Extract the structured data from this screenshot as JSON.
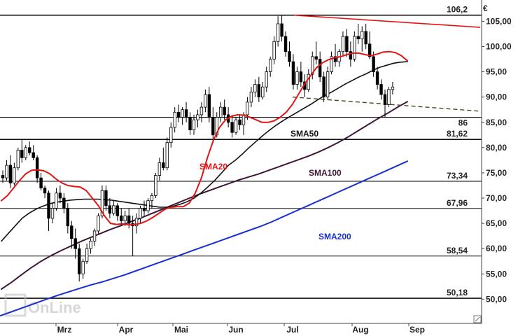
{
  "chart_data": {
    "type": "candlestick",
    "currency_label": "€",
    "y_range": [
      45,
      109
    ],
    "y_ticks": [
      {
        "value": 50,
        "label": "50,00"
      },
      {
        "value": 55,
        "label": "55,00"
      },
      {
        "value": 60,
        "label": "60,00"
      },
      {
        "value": 65,
        "label": "65,00"
      },
      {
        "value": 70,
        "label": "70,00"
      },
      {
        "value": 75,
        "label": "75,00"
      },
      {
        "value": 80,
        "label": "80,00"
      },
      {
        "value": 85,
        "label": "85,00"
      },
      {
        "value": 90,
        "label": "90,00"
      },
      {
        "value": 95,
        "label": "95,00"
      },
      {
        "value": 100,
        "label": "100,00"
      },
      {
        "value": 105,
        "label": "105,00"
      }
    ],
    "x_ticks": [
      "Mrz",
      "Apr",
      "Mai",
      "Jun",
      "Jul",
      "Aug",
      "Sep"
    ],
    "levels": [
      {
        "value": 106.2,
        "label": "106,2"
      },
      {
        "value": 86,
        "label": "86"
      },
      {
        "value": 81.62,
        "label": "81,62"
      },
      {
        "value": 73.34,
        "label": "73,34"
      },
      {
        "value": 67.96,
        "label": "67,96"
      },
      {
        "value": 58.54,
        "label": "58,54"
      },
      {
        "value": 50.18,
        "label": "50,18"
      }
    ],
    "sma_labels": {
      "sma20": "SMA20",
      "sma50": "SMA50",
      "sma100": "SMA100",
      "sma200": "SMA200"
    },
    "colors": {
      "candle": "#000000",
      "sma20": "#e41414",
      "sma50": "#111111",
      "sma100": "#3d1838",
      "sma200": "#1a2fd0",
      "resistance_trend": "#e41414",
      "support_trend": "#4a4a22",
      "level_line": "#111111",
      "axis": "#444444"
    },
    "watermark": "OnLine",
    "resistance_trendline": {
      "start": 106.2,
      "end": 103.8
    },
    "support_trendline": {
      "start": 90.0,
      "end": 87.2
    },
    "sma20": [
      69.5,
      70.5,
      72,
      73.5,
      74.8,
      75.5,
      75.6,
      75.4,
      74.8,
      73.8,
      73,
      72.5,
      72.3,
      72.2,
      71.5,
      70,
      68.5,
      66.5,
      65,
      64.8,
      64.9,
      64.7,
      64.8,
      65,
      65.5,
      66.2,
      67,
      67.8,
      68.2,
      68.3,
      68.3,
      69,
      71,
      74,
      78,
      81.5,
      84,
      85.5,
      86.2,
      86.5,
      86.4,
      86,
      85.5,
      85,
      85,
      85.3,
      86,
      87,
      88.5,
      90.5,
      92.5,
      94.2,
      95.8,
      96.8,
      97.4,
      97.8,
      98,
      98.4,
      98.7,
      98.7,
      98.4,
      98.2,
      98.5,
      98.9,
      99,
      98.8,
      98.2,
      97.2
    ],
    "sma50": [
      61.5,
      63,
      64.5,
      66,
      67,
      67.8,
      68.4,
      68.9,
      69.2,
      69.4,
      69.6,
      69.7,
      69.8,
      69.8,
      69.8,
      69.7,
      69.6,
      69.4,
      69.2,
      69,
      68.8,
      68.6,
      68.4,
      68.2,
      68.2,
      68.4,
      68.8,
      69.3,
      70,
      71,
      72.2,
      73.5,
      75,
      76.5,
      77.5,
      78.7,
      80,
      81.2,
      82.4,
      83.5,
      84.5,
      85.4,
      86.2,
      87,
      87.8,
      88.6,
      89.5,
      90.3,
      91,
      91.8,
      92.6,
      93.3,
      94,
      94.6,
      95.3,
      95.9,
      96.3,
      96.7,
      96.9,
      97
    ],
    "sma100": [
      52,
      53.3,
      54.8,
      56.2,
      57.5,
      58.6,
      59.6,
      60.5,
      61.4,
      62.2,
      63,
      63.8,
      64.5,
      65.3,
      66,
      66.8,
      67.6,
      68.4,
      69.2,
      70,
      70.8,
      71.5,
      72.2,
      72.9,
      73.6,
      74.2,
      74.8,
      75.5,
      76.2,
      76.9,
      77.6,
      78.3,
      79.1,
      80,
      81,
      82.1,
      83.3,
      84.5,
      85.7,
      86.8,
      88,
      89.1
    ],
    "sma200": [
      46.7,
      47.5,
      48.3,
      49.1,
      49.9,
      50.7,
      51.4,
      52.1,
      52.8,
      53.4,
      54.1,
      54.8,
      55.6,
      56.4,
      57.2,
      58,
      58.8,
      59.6,
      60.4,
      61.2,
      62,
      62.8,
      63.6,
      64.4,
      65.3,
      66.3,
      67.3,
      68.3,
      69.3,
      70.3,
      71.3,
      72.3,
      73.3,
      74.3,
      75.3,
      76.3,
      77.3
    ],
    "candles": [
      {
        "o": 74.5,
        "h": 75.5,
        "l": 73,
        "c": 74
      },
      {
        "o": 74,
        "h": 77.5,
        "l": 73.5,
        "c": 76.5
      },
      {
        "o": 76.5,
        "h": 78.5,
        "l": 72,
        "c": 73
      },
      {
        "o": 73,
        "h": 77,
        "l": 72.5,
        "c": 76
      },
      {
        "o": 76,
        "h": 80,
        "l": 75.5,
        "c": 79.5
      },
      {
        "o": 79.5,
        "h": 81.5,
        "l": 77,
        "c": 78
      },
      {
        "o": 78,
        "h": 80.5,
        "l": 77.5,
        "c": 80
      },
      {
        "o": 80,
        "h": 81.2,
        "l": 78.5,
        "c": 79
      },
      {
        "o": 79,
        "h": 80.5,
        "l": 77.5,
        "c": 78
      },
      {
        "o": 78,
        "h": 78.5,
        "l": 73,
        "c": 74
      },
      {
        "o": 74,
        "h": 75,
        "l": 71.5,
        "c": 72
      },
      {
        "o": 72,
        "h": 72.5,
        "l": 70,
        "c": 71
      },
      {
        "o": 71,
        "h": 71.5,
        "l": 63.5,
        "c": 66
      },
      {
        "o": 66,
        "h": 69,
        "l": 65,
        "c": 68
      },
      {
        "o": 68,
        "h": 72,
        "l": 67.5,
        "c": 71
      },
      {
        "o": 71,
        "h": 72.5,
        "l": 69,
        "c": 70
      },
      {
        "o": 70,
        "h": 71,
        "l": 67,
        "c": 68
      },
      {
        "o": 68,
        "h": 69,
        "l": 63,
        "c": 64.5
      },
      {
        "o": 64.5,
        "h": 65.5,
        "l": 60,
        "c": 62
      },
      {
        "o": 62,
        "h": 64,
        "l": 58,
        "c": 60
      },
      {
        "o": 60,
        "h": 61,
        "l": 53.5,
        "c": 55
      },
      {
        "o": 55,
        "h": 58,
        "l": 54,
        "c": 57.5
      },
      {
        "o": 57.5,
        "h": 61,
        "l": 57,
        "c": 60
      },
      {
        "o": 60,
        "h": 62,
        "l": 59,
        "c": 61.5
      },
      {
        "o": 61.5,
        "h": 64,
        "l": 60.5,
        "c": 63.5
      },
      {
        "o": 63.5,
        "h": 67,
        "l": 63,
        "c": 66.5
      },
      {
        "o": 66.5,
        "h": 72.5,
        "l": 66,
        "c": 71.5
      },
      {
        "o": 71.5,
        "h": 72.5,
        "l": 67.5,
        "c": 68.5
      },
      {
        "o": 68.5,
        "h": 70,
        "l": 66,
        "c": 67
      },
      {
        "o": 67,
        "h": 69.5,
        "l": 66.5,
        "c": 68.5
      },
      {
        "o": 68.5,
        "h": 69,
        "l": 65.5,
        "c": 66.5
      },
      {
        "o": 66.5,
        "h": 68,
        "l": 64.5,
        "c": 65.5
      },
      {
        "o": 65.5,
        "h": 67.5,
        "l": 64.5,
        "c": 66.5
      },
      {
        "o": 66.5,
        "h": 68,
        "l": 64,
        "c": 65
      },
      {
        "o": 65,
        "h": 66.5,
        "l": 58.5,
        "c": 64.5
      },
      {
        "o": 64.5,
        "h": 67,
        "l": 63,
        "c": 66
      },
      {
        "o": 66,
        "h": 68.5,
        "l": 65,
        "c": 68
      },
      {
        "o": 68,
        "h": 69.5,
        "l": 66.5,
        "c": 67.5
      },
      {
        "o": 67.5,
        "h": 70,
        "l": 67,
        "c": 69.5
      },
      {
        "o": 69.5,
        "h": 71,
        "l": 68,
        "c": 70.5
      },
      {
        "o": 70.5,
        "h": 75,
        "l": 70,
        "c": 74.5
      },
      {
        "o": 74.5,
        "h": 78,
        "l": 73.5,
        "c": 77
      },
      {
        "o": 77,
        "h": 80,
        "l": 75.5,
        "c": 76
      },
      {
        "o": 76,
        "h": 82,
        "l": 75.5,
        "c": 81
      },
      {
        "o": 81,
        "h": 85,
        "l": 80,
        "c": 84
      },
      {
        "o": 84,
        "h": 88,
        "l": 83,
        "c": 87
      },
      {
        "o": 87,
        "h": 88.5,
        "l": 85,
        "c": 86
      },
      {
        "o": 86,
        "h": 88,
        "l": 84.5,
        "c": 87.5
      },
      {
        "o": 87.5,
        "h": 89,
        "l": 85,
        "c": 86
      },
      {
        "o": 86,
        "h": 87,
        "l": 82.5,
        "c": 83.5
      },
      {
        "o": 83.5,
        "h": 86.5,
        "l": 82.5,
        "c": 85.5
      },
      {
        "o": 85.5,
        "h": 87.5,
        "l": 84,
        "c": 86.5
      },
      {
        "o": 86.5,
        "h": 89,
        "l": 85,
        "c": 88
      },
      {
        "o": 88,
        "h": 91.5,
        "l": 87,
        "c": 90.5
      },
      {
        "o": 90.5,
        "h": 92,
        "l": 85,
        "c": 86
      },
      {
        "o": 86,
        "h": 88,
        "l": 81,
        "c": 82.5
      },
      {
        "o": 82.5,
        "h": 87,
        "l": 82,
        "c": 86
      },
      {
        "o": 86,
        "h": 89,
        "l": 85,
        "c": 88
      },
      {
        "o": 88,
        "h": 89.5,
        "l": 85.5,
        "c": 86.5
      },
      {
        "o": 86.5,
        "h": 88,
        "l": 84,
        "c": 85
      },
      {
        "o": 85,
        "h": 86.5,
        "l": 82,
        "c": 83
      },
      {
        "o": 83,
        "h": 86,
        "l": 82.5,
        "c": 85.5
      },
      {
        "o": 85.5,
        "h": 86.5,
        "l": 83.5,
        "c": 84.5
      },
      {
        "o": 84.5,
        "h": 87,
        "l": 82.5,
        "c": 86.5
      },
      {
        "o": 86.5,
        "h": 90,
        "l": 85.5,
        "c": 89
      },
      {
        "o": 89,
        "h": 92,
        "l": 88,
        "c": 91
      },
      {
        "o": 91,
        "h": 93.5,
        "l": 90,
        "c": 92.5
      },
      {
        "o": 92.5,
        "h": 94,
        "l": 89,
        "c": 90
      },
      {
        "o": 90,
        "h": 93,
        "l": 89.5,
        "c": 92
      },
      {
        "o": 92,
        "h": 96,
        "l": 91,
        "c": 95
      },
      {
        "o": 95,
        "h": 98,
        "l": 94,
        "c": 97.5
      },
      {
        "o": 97.5,
        "h": 102,
        "l": 96.5,
        "c": 101
      },
      {
        "o": 101,
        "h": 106,
        "l": 100,
        "c": 104.5
      },
      {
        "o": 104.5,
        "h": 106.2,
        "l": 101,
        "c": 102
      },
      {
        "o": 102,
        "h": 103,
        "l": 98,
        "c": 99
      },
      {
        "o": 99,
        "h": 101,
        "l": 96,
        "c": 97
      },
      {
        "o": 97,
        "h": 98.5,
        "l": 91.5,
        "c": 92.5
      },
      {
        "o": 92.5,
        "h": 96,
        "l": 91.5,
        "c": 95
      },
      {
        "o": 95,
        "h": 97,
        "l": 92,
        "c": 93
      },
      {
        "o": 93,
        "h": 94.5,
        "l": 90,
        "c": 91.5
      },
      {
        "o": 91.5,
        "h": 95.5,
        "l": 91,
        "c": 94.5
      },
      {
        "o": 94.5,
        "h": 99,
        "l": 93.5,
        "c": 98
      },
      {
        "o": 98,
        "h": 101,
        "l": 96.5,
        "c": 97.5
      },
      {
        "o": 97.5,
        "h": 99,
        "l": 93,
        "c": 94
      },
      {
        "o": 94,
        "h": 95,
        "l": 89,
        "c": 90
      },
      {
        "o": 90,
        "h": 96,
        "l": 89.5,
        "c": 95
      },
      {
        "o": 95,
        "h": 99,
        "l": 94.5,
        "c": 98
      },
      {
        "o": 98,
        "h": 100.5,
        "l": 96,
        "c": 97
      },
      {
        "o": 97,
        "h": 99.5,
        "l": 96,
        "c": 99
      },
      {
        "o": 99,
        "h": 103,
        "l": 98,
        "c": 102
      },
      {
        "o": 102,
        "h": 103.5,
        "l": 98,
        "c": 99
      },
      {
        "o": 99,
        "h": 101,
        "l": 96,
        "c": 97.5
      },
      {
        "o": 97.5,
        "h": 103,
        "l": 97,
        "c": 102
      },
      {
        "o": 102,
        "h": 104.5,
        "l": 100.5,
        "c": 101.5
      },
      {
        "o": 101.5,
        "h": 104,
        "l": 99,
        "c": 103
      },
      {
        "o": 103,
        "h": 104.5,
        "l": 99.5,
        "c": 100.5
      },
      {
        "o": 100.5,
        "h": 103,
        "l": 97.5,
        "c": 98
      },
      {
        "o": 98,
        "h": 99,
        "l": 94,
        "c": 95
      },
      {
        "o": 95,
        "h": 96,
        "l": 91.5,
        "c": 92.5
      },
      {
        "o": 92.5,
        "h": 93.5,
        "l": 89.5,
        "c": 90.5
      },
      {
        "o": 90.5,
        "h": 91.5,
        "l": 86,
        "c": 88.5
      },
      {
        "o": 88.5,
        "h": 92,
        "l": 88,
        "c": 91.5
      },
      {
        "o": 91.5,
        "h": 93,
        "l": 90.5,
        "c": 92
      }
    ]
  }
}
